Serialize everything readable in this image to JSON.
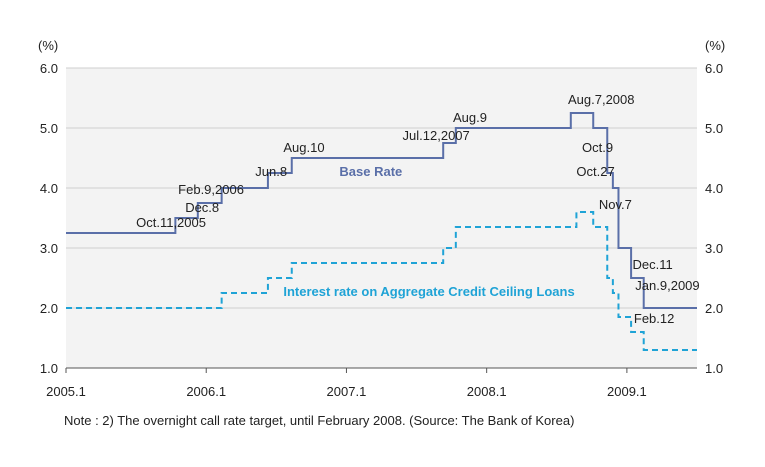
{
  "chart_data": {
    "type": "line",
    "title": "",
    "xlabel": "",
    "ylabel_left": "(%)",
    "ylabel_right": "(%)",
    "xlim": [
      2005.0,
      2009.5
    ],
    "ylim": [
      1.0,
      6.0
    ],
    "x_ticks": [
      {
        "label": "2005.1",
        "x": 2005.0
      },
      {
        "label": "2006.1",
        "x": 2006.0
      },
      {
        "label": "2007.1",
        "x": 2007.0
      },
      {
        "label": "2008.1",
        "x": 2008.0
      },
      {
        "label": "2009.1",
        "x": 2009.0
      }
    ],
    "y_ticks": [
      "1.0",
      "2.0",
      "3.0",
      "4.0",
      "5.0",
      "6.0"
    ],
    "y_tick_values": [
      1,
      2,
      3,
      4,
      5,
      6
    ],
    "grid": "horizontal",
    "series": [
      {
        "name": "Base Rate",
        "color": "#5a6fa8",
        "style": "solid",
        "step": true,
        "points": [
          [
            2005.0,
            3.25
          ],
          [
            2005.78,
            3.5
          ],
          [
            2005.94,
            3.75
          ],
          [
            2006.11,
            4.0
          ],
          [
            2006.44,
            4.25
          ],
          [
            2006.61,
            4.5
          ],
          [
            2007.69,
            4.75
          ],
          [
            2007.78,
            5.0
          ],
          [
            2008.6,
            5.25
          ],
          [
            2008.76,
            5.0
          ],
          [
            2008.86,
            4.25
          ],
          [
            2008.9,
            4.0
          ],
          [
            2008.94,
            3.0
          ],
          [
            2009.03,
            2.5
          ],
          [
            2009.12,
            2.0
          ],
          [
            2009.5,
            2.0
          ]
        ]
      },
      {
        "name": "Interest rate on Aggregate Credit Ceiling Loans",
        "color": "#1fa3d6",
        "style": "dashed",
        "step": true,
        "points": [
          [
            2005.0,
            2.0
          ],
          [
            2006.11,
            2.25
          ],
          [
            2006.44,
            2.5
          ],
          [
            2006.61,
            2.75
          ],
          [
            2007.69,
            3.0
          ],
          [
            2007.78,
            3.35
          ],
          [
            2008.64,
            3.6
          ],
          [
            2008.76,
            3.35
          ],
          [
            2008.86,
            2.5
          ],
          [
            2008.9,
            2.25
          ],
          [
            2008.94,
            1.85
          ],
          [
            2009.03,
            1.6
          ],
          [
            2009.12,
            1.3
          ],
          [
            2009.5,
            1.3
          ]
        ]
      }
    ],
    "annotations": [
      {
        "text": "Oct.11,2005",
        "x": 2005.5,
        "y": 3.35
      },
      {
        "text": "Dec.8",
        "x": 2005.85,
        "y": 3.6
      },
      {
        "text": "Feb.9,2006",
        "x": 2005.8,
        "y": 3.9
      },
      {
        "text": "Jun.8",
        "x": 2006.35,
        "y": 4.2
      },
      {
        "text": "Aug.10",
        "x": 2006.55,
        "y": 4.6
      },
      {
        "text": "Jul.12,2007",
        "x": 2007.4,
        "y": 4.8
      },
      {
        "text": "Aug.9",
        "x": 2007.76,
        "y": 5.1
      },
      {
        "text": "Aug.7,2008",
        "x": 2008.58,
        "y": 5.4
      },
      {
        "text": "Oct.9",
        "x": 2008.68,
        "y": 4.6
      },
      {
        "text": "Oct.27",
        "x": 2008.64,
        "y": 4.2
      },
      {
        "text": "Nov.7",
        "x": 2008.8,
        "y": 3.65
      },
      {
        "text": "Dec.11",
        "x": 2009.04,
        "y": 2.65
      },
      {
        "text": "Jan.9,2009",
        "x": 2009.06,
        "y": 2.3
      },
      {
        "text": "Feb.12",
        "x": 2009.05,
        "y": 1.75
      }
    ],
    "series_labels": [
      {
        "text": "Base Rate",
        "series": 0,
        "x": 2006.95,
        "y": 4.2
      },
      {
        "text": "Interest rate on Aggregate Credit Ceiling Loans",
        "series": 1,
        "x": 2006.55,
        "y": 2.2
      }
    ]
  },
  "note": "Note : 2) The overnight call rate target, until February 2008. (Source: The Bank of Korea)"
}
